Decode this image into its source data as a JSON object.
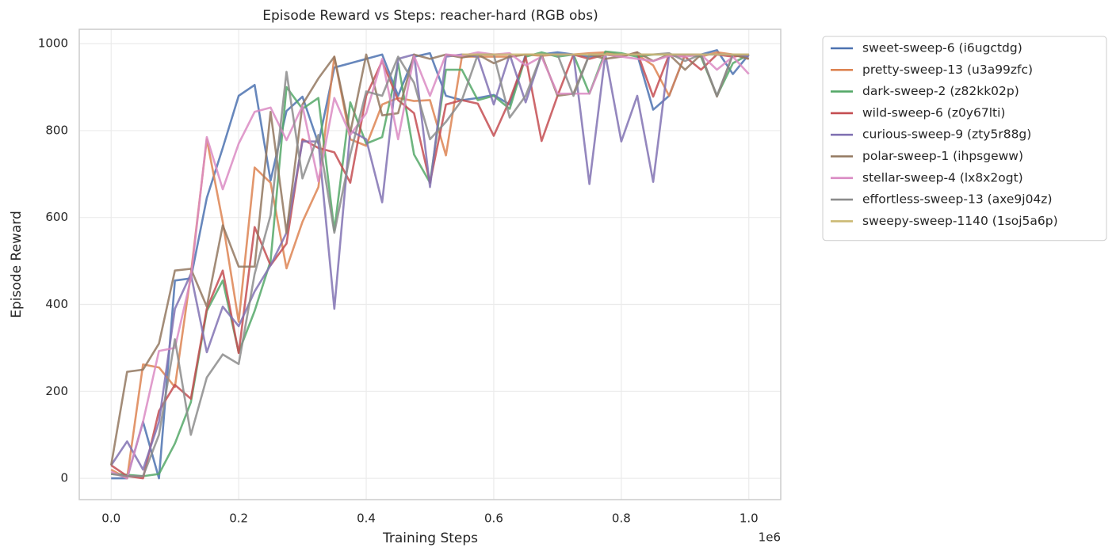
{
  "chart_data": {
    "type": "line",
    "title": "Episode Reward vs Steps: reacher-hard (RGB obs)",
    "x_label": "Training Steps",
    "y_label": "Episode Reward",
    "x_offset_label": "1e6",
    "x": [
      0,
      25000,
      50000,
      75000,
      100000,
      125000,
      150000,
      175000,
      200000,
      225000,
      250000,
      275000,
      300000,
      325000,
      350000,
      375000,
      400000,
      425000,
      450000,
      475000,
      500000,
      525000,
      550000,
      575000,
      600000,
      625000,
      650000,
      675000,
      700000,
      725000,
      750000,
      775000,
      800000,
      825000,
      850000,
      875000,
      900000,
      925000,
      950000,
      975000,
      1000000
    ],
    "xlim": [
      -50000,
      1050000
    ],
    "xticks": [
      {
        "value": 0,
        "label": "0.0"
      },
      {
        "value": 200000,
        "label": "0.2"
      },
      {
        "value": 400000,
        "label": "0.4"
      },
      {
        "value": 600000,
        "label": "0.6"
      },
      {
        "value": 800000,
        "label": "0.8"
      },
      {
        "value": 1000000,
        "label": "1.0"
      }
    ],
    "ylim": [
      -49,
      1033
    ],
    "yticks": [
      0,
      200,
      400,
      600,
      800,
      1000
    ],
    "grid": true,
    "legend": "outside right",
    "series": [
      {
        "name": "sweet-sweep-6 (i6ugctdg)",
        "color": "#4c72b0",
        "values": [
          0,
          0,
          130,
          0,
          455,
          460,
          645,
          760,
          880,
          905,
          685,
          845,
          878,
          770,
          945,
          955,
          965,
          975,
          880,
          970,
          978,
          880,
          870,
          875,
          882,
          860,
          975,
          975,
          980,
          975,
          970,
          975,
          975,
          975,
          848,
          880,
          975,
          975,
          985,
          930,
          975
        ]
      },
      {
        "name": "pretty-sweep-13 (u3a99zfc)",
        "color": "#dd8452",
        "values": [
          20,
          0,
          262,
          255,
          210,
          470,
          780,
          590,
          360,
          715,
          680,
          483,
          590,
          670,
          970,
          780,
          765,
          860,
          875,
          868,
          870,
          743,
          970,
          970,
          970,
          970,
          975,
          972,
          975,
          975,
          978,
          980,
          975,
          975,
          950,
          880,
          975,
          970,
          980,
          975,
          965
        ]
      },
      {
        "name": "dark-sweep-2 (z82kk02p)",
        "color": "#55a868",
        "values": [
          10,
          8,
          5,
          10,
          80,
          175,
          385,
          455,
          290,
          385,
          500,
          900,
          850,
          875,
          570,
          865,
          770,
          785,
          955,
          745,
          680,
          940,
          940,
          870,
          880,
          850,
          970,
          980,
          970,
          975,
          885,
          982,
          978,
          970,
          975,
          975,
          975,
          970,
          880,
          955,
          975
        ]
      },
      {
        "name": "wild-sweep-6 (z0y67lti)",
        "color": "#c44e52",
        "values": [
          30,
          5,
          0,
          155,
          215,
          183,
          390,
          478,
          288,
          578,
          490,
          540,
          780,
          760,
          750,
          680,
          880,
          960,
          870,
          840,
          680,
          860,
          870,
          862,
          788,
          870,
          970,
          776,
          880,
          975,
          965,
          975,
          970,
          980,
          878,
          975,
          970,
          940,
          975,
          970,
          975
        ]
      },
      {
        "name": "curious-sweep-9 (zty5r88g)",
        "color": "#8172b3",
        "values": [
          30,
          85,
          20,
          130,
          390,
          470,
          290,
          395,
          350,
          430,
          490,
          565,
          775,
          775,
          390,
          800,
          780,
          635,
          965,
          975,
          670,
          970,
          975,
          970,
          860,
          975,
          865,
          975,
          975,
          975,
          677,
          975,
          775,
          880,
          682,
          975,
          975,
          975,
          975,
          975,
          970
        ]
      },
      {
        "name": "polar-sweep-1 (ihpsgeww)",
        "color": "#937860",
        "values": [
          30,
          245,
          250,
          310,
          478,
          482,
          395,
          582,
          487,
          487,
          843,
          565,
          860,
          920,
          970,
          795,
          975,
          835,
          840,
          975,
          965,
          975,
          968,
          975,
          955,
          970,
          975,
          975,
          880,
          885,
          975,
          965,
          970,
          980,
          960,
          975,
          940,
          975,
          878,
          975,
          965
        ]
      },
      {
        "name": "stellar-sweep-4 (lx8x2ogt)",
        "color": "#da8bc3",
        "values": [
          15,
          0,
          130,
          293,
          300,
          460,
          785,
          665,
          770,
          843,
          853,
          778,
          857,
          683,
          875,
          790,
          840,
          965,
          780,
          972,
          880,
          975,
          972,
          980,
          975,
          978,
          950,
          970,
          885,
          885,
          885,
          975,
          970,
          965,
          960,
          972,
          970,
          975,
          940,
          970,
          930
        ]
      },
      {
        "name": "effortless-sweep-13 (axe9j04z)",
        "color": "#8c8c8c",
        "values": [
          10,
          5,
          5,
          100,
          320,
          100,
          232,
          285,
          263,
          470,
          605,
          935,
          690,
          790,
          565,
          745,
          890,
          880,
          970,
          910,
          780,
          820,
          870,
          975,
          975,
          830,
          880,
          975,
          975,
          880,
          975,
          975,
          975,
          975,
          975,
          978,
          960,
          975,
          880,
          975,
          975
        ]
      },
      {
        "name": "sweepy-sweep-1140 (1soj5a6p)",
        "color": "#ccb974",
        "values": [
          null,
          null,
          null,
          null,
          null,
          null,
          null,
          null,
          null,
          null,
          null,
          null,
          null,
          null,
          null,
          null,
          null,
          null,
          null,
          null,
          null,
          null,
          975,
          975,
          975,
          975,
          975,
          975,
          975,
          975,
          975,
          975,
          975,
          975,
          975,
          975,
          975,
          975,
          975,
          975,
          975
        ]
      }
    ]
  }
}
